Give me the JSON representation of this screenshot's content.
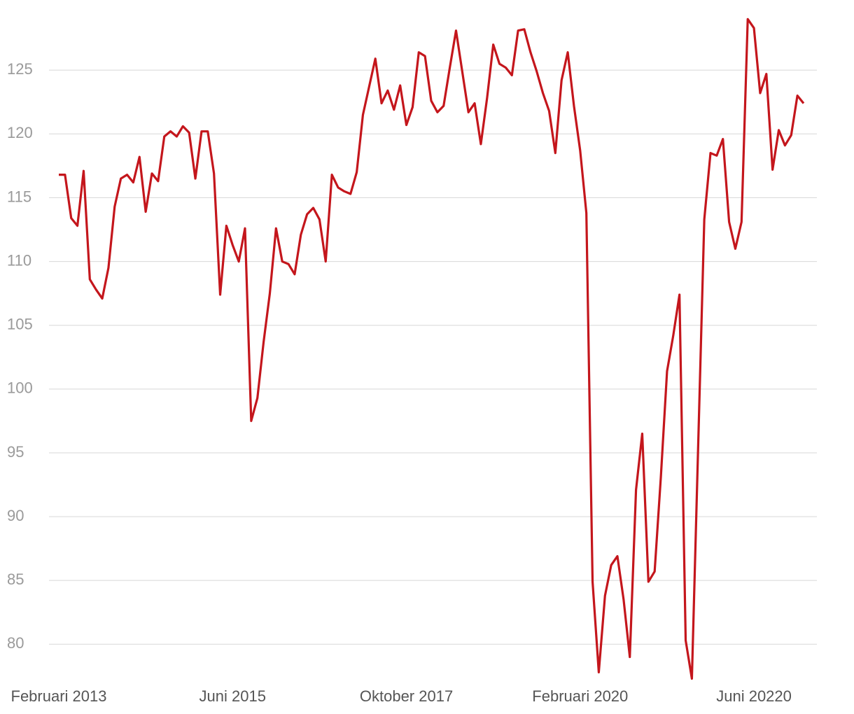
{
  "chart_data": {
    "type": "line",
    "categories": [
      "Februari 2013",
      null,
      null,
      null,
      null,
      null,
      null,
      null,
      null,
      null,
      null,
      null,
      null,
      null,
      null,
      null,
      null,
      null,
      null,
      null,
      null,
      null,
      null,
      null,
      null,
      null,
      null,
      null,
      "Juni 2015",
      null,
      null,
      null,
      null,
      null,
      null,
      null,
      null,
      null,
      null,
      null,
      null,
      null,
      null,
      null,
      null,
      null,
      null,
      null,
      null,
      null,
      null,
      null,
      null,
      null,
      null,
      null,
      "Oktober 2017",
      null,
      null,
      null,
      null,
      null,
      null,
      null,
      null,
      null,
      null,
      null,
      null,
      null,
      null,
      null,
      null,
      null,
      null,
      null,
      null,
      null,
      null,
      null,
      null,
      null,
      null,
      null,
      "Februari 2020",
      null,
      null,
      null,
      null,
      null,
      null,
      null,
      null,
      null,
      null,
      null,
      null,
      null,
      null,
      null,
      null,
      null,
      null,
      null,
      null,
      null,
      null,
      null,
      null,
      null,
      null,
      null,
      "Juni 20220",
      null,
      null,
      null,
      null,
      null,
      null,
      null,
      null
    ],
    "values": [
      116.8,
      116.8,
      113.4,
      112.8,
      117.1,
      108.6,
      107.8,
      107.1,
      109.5,
      114.3,
      116.5,
      116.8,
      116.2,
      118.2,
      113.9,
      116.9,
      116.3,
      119.8,
      120.2,
      119.8,
      120.6,
      120.1,
      116.5,
      120.2,
      120.2,
      116.9,
      107.4,
      112.8,
      111.3,
      110.0,
      112.6,
      97.5,
      99.3,
      103.7,
      107.5,
      112.6,
      110.0,
      109.8,
      109.0,
      112.1,
      113.7,
      114.2,
      113.3,
      110.0,
      116.8,
      115.8,
      115.5,
      115.3,
      117.0,
      121.5,
      123.7,
      125.9,
      122.4,
      123.4,
      121.9,
      123.8,
      120.7,
      122.1,
      126.4,
      126.1,
      122.6,
      121.7,
      122.2,
      125.2,
      128.1,
      124.9,
      121.7,
      122.4,
      119.2,
      122.8,
      127.0,
      125.5,
      125.2,
      124.6,
      128.1,
      128.2,
      126.4,
      124.9,
      123.2,
      121.8,
      118.5,
      124.2,
      126.4,
      122.2,
      118.7,
      113.8,
      84.9,
      77.8,
      83.8,
      86.2,
      86.9,
      83.5,
      79.0,
      92.1,
      96.5,
      84.9,
      85.7,
      93.1,
      101.4,
      104.2,
      107.4,
      80.3,
      77.3,
      95.3,
      113.3,
      118.5,
      118.3,
      119.6,
      113.1,
      111.0,
      113.1,
      129.0,
      128.3,
      123.2,
      124.7,
      117.2,
      120.3,
      119.1,
      119.9,
      123.0,
      122.4
    ],
    "color": "#c4161c",
    "ylim": [
      77,
      129.4
    ],
    "yticks": [
      80,
      85,
      90,
      95,
      100,
      105,
      110,
      115,
      120,
      125
    ],
    "grid": true
  }
}
